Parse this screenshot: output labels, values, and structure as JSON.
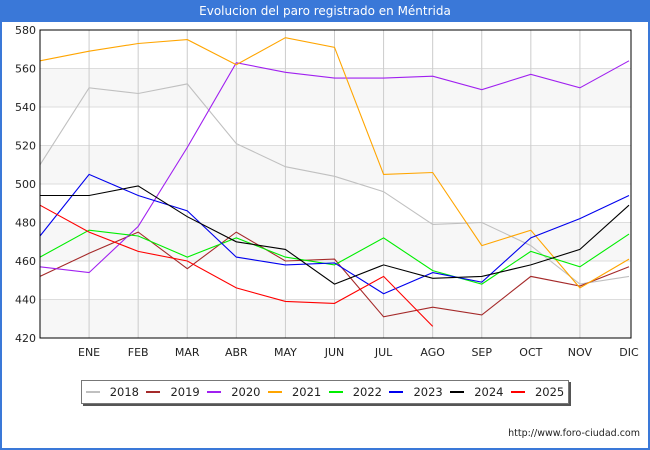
{
  "title": "Evolucion del paro registrado en Méntrida",
  "source": "http://www.foro-ciudad.com",
  "chart_data": {
    "type": "line",
    "title": "Evolucion del paro registrado en Méntrida",
    "xlabel": "",
    "ylabel": "",
    "x": [
      "",
      "ENE",
      "FEB",
      "MAR",
      "ABR",
      "MAY",
      "JUN",
      "JUL",
      "AGO",
      "SEP",
      "OCT",
      "NOV",
      "DIC"
    ],
    "ylim": [
      420,
      580
    ],
    "yticks": [
      420,
      440,
      460,
      480,
      500,
      520,
      540,
      560,
      580
    ],
    "grid": true,
    "legend_position": "bottom",
    "series": [
      {
        "name": "2018",
        "color": "#c0c0c0",
        "values": [
          510,
          550,
          547,
          552,
          521,
          509,
          504,
          496,
          479,
          480,
          468,
          448,
          452
        ]
      },
      {
        "name": "2019",
        "color": "#a52a2a",
        "values": [
          452,
          464,
          475,
          456,
          475,
          460,
          461,
          431,
          436,
          432,
          452,
          447,
          457
        ]
      },
      {
        "name": "2020",
        "color": "#a020f0",
        "values": [
          457,
          454,
          478,
          519,
          563,
          558,
          555,
          555,
          556,
          549,
          557,
          550,
          564
        ]
      },
      {
        "name": "2021",
        "color": "#ffa500",
        "values": [
          564,
          569,
          573,
          575,
          562,
          576,
          571,
          505,
          506,
          468,
          476,
          446,
          461
        ]
      },
      {
        "name": "2022",
        "color": "#00ee00",
        "values": [
          462,
          476,
          473,
          462,
          472,
          462,
          458,
          472,
          455,
          448,
          465,
          457,
          474
        ]
      },
      {
        "name": "2023",
        "color": "#0000ee",
        "values": [
          473,
          505,
          494,
          486,
          462,
          458,
          459,
          443,
          454,
          449,
          472,
          482,
          494
        ]
      },
      {
        "name": "2024",
        "color": "#000000",
        "values": [
          494,
          494,
          499,
          483,
          470,
          466,
          448,
          458,
          451,
          452,
          458,
          466,
          489
        ]
      },
      {
        "name": "2025",
        "color": "#ff0000",
        "values": [
          489,
          475,
          465,
          460,
          446,
          439,
          438,
          452,
          426
        ]
      }
    ]
  }
}
